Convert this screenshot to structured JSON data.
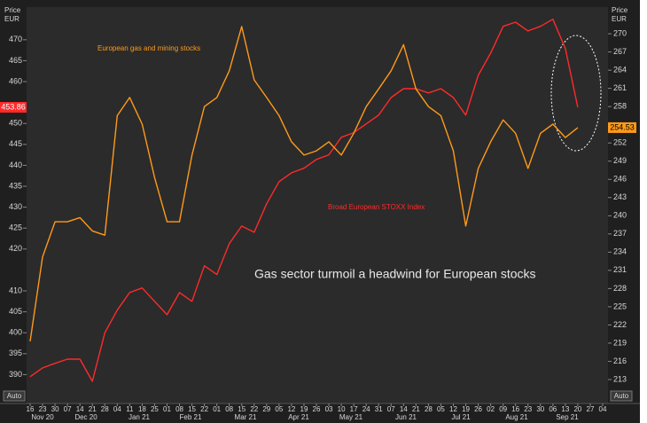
{
  "chart_data": {
    "type": "line",
    "title": "Gas sector turmoil a headwind for European stocks",
    "ylabel": [
      "Price",
      "EUR"
    ],
    "y2label": [
      "Price",
      "EUR"
    ],
    "buttons": [
      "Auto",
      "Auto"
    ],
    "categories": [
      "16",
      "23",
      "30",
      "07",
      "14",
      "21",
      "28",
      "04",
      "11",
      "18",
      "25",
      "01",
      "08",
      "15",
      "22",
      "01",
      "08",
      "15",
      "22",
      "29",
      "05",
      "12",
      "19",
      "26",
      "03",
      "10",
      "17",
      "24",
      "31",
      "07",
      "14",
      "21",
      "28",
      "05",
      "12",
      "19",
      "26",
      "02",
      "09",
      "16",
      "23",
      "30",
      "06",
      "13",
      "20",
      "27",
      "04"
    ],
    "months": [
      "Nov 20",
      "Dec 20",
      "Jan 21",
      "Feb 21",
      "Mar 21",
      "Apr 21",
      "May 21",
      "Jun 21",
      "Jul 21",
      "Aug 21",
      "Sep 21"
    ],
    "series": [
      {
        "name": "Broad European STOXX Index",
        "color": "#ff2a2a",
        "axis": "y",
        "values": [
          389.5,
          391.6,
          392.7,
          393.7,
          393.7,
          388.4,
          400,
          405.4,
          409.6,
          410.7,
          407.5,
          404.3,
          409.6,
          407.5,
          416,
          413.9,
          421.3,
          425.5,
          424,
          430.8,
          436.1,
          438.2,
          439.3,
          441.4,
          442.5,
          446.7,
          447.8,
          449.9,
          452,
          456.2,
          458.3,
          458.3,
          457.3,
          458.3,
          456.2,
          452,
          461.5,
          466.8,
          473.2,
          474.2,
          472.1,
          473.2,
          474.9,
          467.9,
          453.86,
          null,
          null
        ],
        "value_labels": [
          null,
          null,
          null,
          null,
          null,
          null,
          null,
          null,
          null,
          null,
          null,
          null,
          null,
          null,
          null,
          null,
          null,
          null,
          null,
          null,
          null,
          null,
          null,
          null,
          null,
          null,
          null,
          null,
          null,
          null,
          null,
          null,
          null,
          null,
          null,
          null,
          null,
          null,
          null,
          null,
          null,
          null,
          null,
          null,
          "453.86",
          null,
          null
        ]
      },
      {
        "name": "European gas and mining stocks",
        "color": "#ff9a1a",
        "axis": "y2",
        "values": [
          219.3,
          233.2,
          239,
          239,
          239.7,
          237.5,
          236.8,
          256.5,
          259.5,
          255.1,
          246.3,
          239,
          239,
          250,
          258,
          259.5,
          263.9,
          271.2,
          262.4,
          259.5,
          256.5,
          252.2,
          250,
          250.7,
          252.2,
          250,
          253.6,
          258,
          260.9,
          263.9,
          268.2,
          260.9,
          258,
          256.5,
          250.7,
          238.3,
          247.8,
          252.2,
          255.8,
          253.6,
          247.8,
          253.6,
          255.1,
          252.9,
          254.53,
          null,
          null
        ],
        "value_labels": [
          null,
          null,
          null,
          null,
          null,
          null,
          null,
          null,
          null,
          null,
          null,
          null,
          null,
          null,
          null,
          null,
          null,
          null,
          null,
          null,
          null,
          null,
          null,
          null,
          null,
          null,
          null,
          null,
          null,
          null,
          null,
          null,
          null,
          null,
          null,
          null,
          null,
          null,
          null,
          null,
          null,
          null,
          null,
          null,
          "254.53",
          null,
          null
        ]
      }
    ],
    "ylim": [
      383.1,
      477.8
    ],
    "yticks": [
      390,
      395,
      400,
      405,
      410,
      420,
      425,
      430,
      435,
      440,
      445,
      450,
      460,
      465,
      470
    ],
    "y2lim": [
      209.05,
      274.4
    ],
    "y2ticks": [
      213,
      216,
      219,
      222,
      225,
      228,
      231,
      234,
      237,
      240,
      243,
      246,
      249,
      252,
      258,
      261,
      264,
      267,
      270
    ],
    "grid": false
  }
}
